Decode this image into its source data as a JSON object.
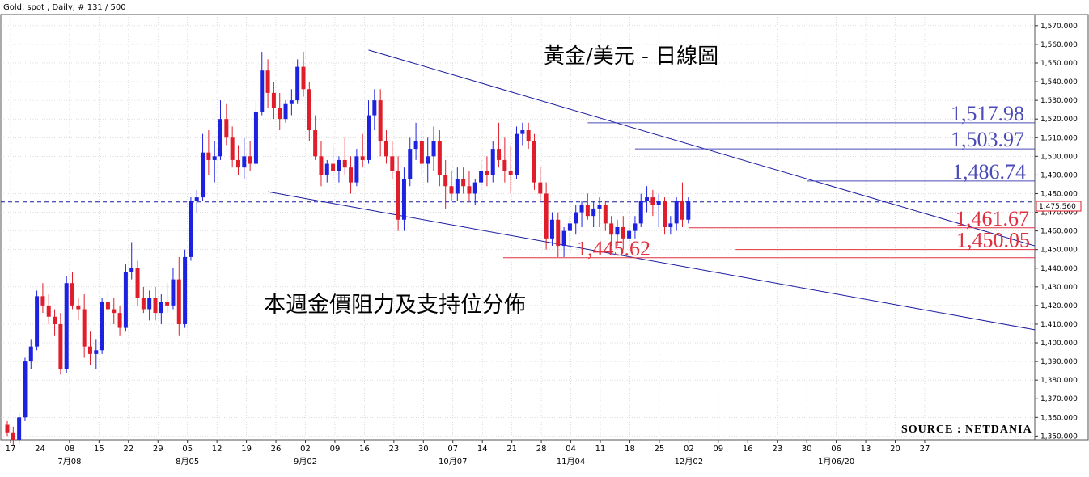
{
  "header": "Gold, spot , Daily, # 131 / 500",
  "source_label": "SOURCE : NETDANIA",
  "colors": {
    "up": "#1d22e0",
    "down": "#e01d2a",
    "trend": "#1a1aa0",
    "resistance": "#4a4ab8",
    "support": "#e03040"
  },
  "chart_data": {
    "type": "candlestick",
    "title": "黃金/美元 - 日線圖",
    "annotation": "本週金價阻力及支持位分佈",
    "current_price": "1,475.560",
    "ylim": [
      1348,
      1576
    ],
    "y_ticks": [
      "1,350.000",
      "1,360.000",
      "1,370.000",
      "1,380.000",
      "1,390.000",
      "1,400.000",
      "1,410.000",
      "1,420.000",
      "1,430.000",
      "1,440.000",
      "1,450.000",
      "1,460.000",
      "1,470.000",
      "1,480.000",
      "1,490.000",
      "1,500.000",
      "1,510.000",
      "1,520.000",
      "1,530.000",
      "1,540.000",
      "1,550.000",
      "1,560.000",
      "1,570.000"
    ],
    "x_ticks": [
      "17",
      "24",
      "08",
      "15",
      "22",
      "29",
      "05",
      "12",
      "19",
      "26",
      "02",
      "09",
      "16",
      "23",
      "30",
      "07",
      "14",
      "21",
      "28",
      "04",
      "11",
      "18",
      "25",
      "02",
      "09",
      "16",
      "23",
      "30",
      "06",
      "13",
      "20",
      "27"
    ],
    "month_labels": [
      "7月08",
      "8月05",
      "9月02",
      "10月07",
      "11月04",
      "12月02",
      "1月06/20"
    ],
    "levels": [
      {
        "label": "1,517.98",
        "value": 1517.98,
        "kind": "resistance"
      },
      {
        "label": "1,503.97",
        "value": 1503.97,
        "kind": "resistance"
      },
      {
        "label": "1,486.74",
        "value": 1486.74,
        "kind": "resistance"
      },
      {
        "label": "1,461.67",
        "value": 1461.67,
        "kind": "support"
      },
      {
        "label": "1,450.05",
        "value": 1450.05,
        "kind": "support"
      },
      {
        "label": "1,445.62",
        "value": 1445.62,
        "kind": "support"
      }
    ],
    "candles": [
      [
        1356,
        1358,
        1350,
        1352
      ],
      [
        1352,
        1355,
        1345,
        1348
      ],
      [
        1348,
        1362,
        1346,
        1360
      ],
      [
        1360,
        1392,
        1358,
        1390
      ],
      [
        1390,
        1402,
        1386,
        1398
      ],
      [
        1398,
        1428,
        1396,
        1425
      ],
      [
        1425,
        1432,
        1416,
        1420
      ],
      [
        1420,
        1426,
        1410,
        1414
      ],
      [
        1414,
        1418,
        1404,
        1410
      ],
      [
        1410,
        1416,
        1383,
        1386
      ],
      [
        1386,
        1436,
        1384,
        1432
      ],
      [
        1432,
        1438,
        1418,
        1420
      ],
      [
        1420,
        1424,
        1412,
        1418
      ],
      [
        1418,
        1426,
        1392,
        1398
      ],
      [
        1398,
        1406,
        1388,
        1394
      ],
      [
        1394,
        1402,
        1386,
        1396
      ],
      [
        1396,
        1424,
        1394,
        1422
      ],
      [
        1422,
        1428,
        1416,
        1418
      ],
      [
        1418,
        1424,
        1410,
        1416
      ],
      [
        1416,
        1420,
        1404,
        1408
      ],
      [
        1408,
        1442,
        1406,
        1438
      ],
      [
        1438,
        1454,
        1434,
        1440
      ],
      [
        1440,
        1444,
        1420,
        1424
      ],
      [
        1424,
        1430,
        1416,
        1418
      ],
      [
        1418,
        1428,
        1412,
        1424
      ],
      [
        1424,
        1430,
        1412,
        1416
      ],
      [
        1416,
        1426,
        1410,
        1422
      ],
      [
        1422,
        1432,
        1416,
        1420
      ],
      [
        1420,
        1440,
        1418,
        1434
      ],
      [
        1434,
        1446,
        1404,
        1410
      ],
      [
        1410,
        1450,
        1408,
        1446
      ],
      [
        1446,
        1478,
        1444,
        1476
      ],
      [
        1476,
        1482,
        1470,
        1478
      ],
      [
        1478,
        1512,
        1476,
        1502
      ],
      [
        1502,
        1514,
        1490,
        1498
      ],
      [
        1498,
        1508,
        1486,
        1500
      ],
      [
        1500,
        1530,
        1498,
        1520
      ],
      [
        1520,
        1528,
        1506,
        1510
      ],
      [
        1510,
        1516,
        1494,
        1498
      ],
      [
        1498,
        1506,
        1490,
        1494
      ],
      [
        1494,
        1510,
        1488,
        1500
      ],
      [
        1500,
        1508,
        1492,
        1496
      ],
      [
        1496,
        1530,
        1494,
        1524
      ],
      [
        1524,
        1556,
        1522,
        1546
      ],
      [
        1546,
        1552,
        1526,
        1534
      ],
      [
        1534,
        1540,
        1520,
        1526
      ],
      [
        1526,
        1534,
        1514,
        1520
      ],
      [
        1520,
        1530,
        1518,
        1528
      ],
      [
        1528,
        1536,
        1522,
        1530
      ],
      [
        1530,
        1552,
        1528,
        1548
      ],
      [
        1548,
        1556,
        1532,
        1536
      ],
      [
        1536,
        1540,
        1508,
        1514
      ],
      [
        1514,
        1522,
        1498,
        1500
      ],
      [
        1500,
        1508,
        1484,
        1490
      ],
      [
        1490,
        1498,
        1486,
        1496
      ],
      [
        1496,
        1506,
        1488,
        1492
      ],
      [
        1492,
        1500,
        1486,
        1498
      ],
      [
        1498,
        1510,
        1490,
        1494
      ],
      [
        1494,
        1500,
        1480,
        1486
      ],
      [
        1486,
        1504,
        1484,
        1500
      ],
      [
        1500,
        1512,
        1494,
        1498
      ],
      [
        1498,
        1530,
        1496,
        1522
      ],
      [
        1522,
        1536,
        1514,
        1530
      ],
      [
        1530,
        1536,
        1500,
        1508
      ],
      [
        1508,
        1514,
        1496,
        1500
      ],
      [
        1500,
        1508,
        1488,
        1492
      ],
      [
        1492,
        1500,
        1460,
        1466
      ],
      [
        1466,
        1494,
        1460,
        1488
      ],
      [
        1488,
        1510,
        1484,
        1504
      ],
      [
        1504,
        1518,
        1498,
        1508
      ],
      [
        1508,
        1514,
        1490,
        1496
      ],
      [
        1496,
        1510,
        1486,
        1500
      ],
      [
        1500,
        1516,
        1492,
        1508
      ],
      [
        1508,
        1514,
        1484,
        1490
      ],
      [
        1490,
        1498,
        1472,
        1484
      ],
      [
        1484,
        1492,
        1476,
        1480
      ],
      [
        1480,
        1494,
        1476,
        1488
      ],
      [
        1488,
        1494,
        1480,
        1484
      ],
      [
        1484,
        1492,
        1476,
        1480
      ],
      [
        1480,
        1488,
        1474,
        1486
      ],
      [
        1486,
        1498,
        1482,
        1492
      ],
      [
        1492,
        1500,
        1484,
        1490
      ],
      [
        1490,
        1508,
        1486,
        1504
      ],
      [
        1504,
        1518,
        1494,
        1498
      ],
      [
        1498,
        1510,
        1486,
        1492
      ],
      [
        1492,
        1506,
        1480,
        1490
      ],
      [
        1490,
        1516,
        1488,
        1512
      ],
      [
        1512,
        1518,
        1506,
        1514
      ],
      [
        1514,
        1518,
        1504,
        1508
      ],
      [
        1508,
        1512,
        1482,
        1486
      ],
      [
        1486,
        1494,
        1476,
        1480
      ],
      [
        1480,
        1486,
        1450,
        1456
      ],
      [
        1456,
        1470,
        1452,
        1466
      ],
      [
        1466,
        1470,
        1446,
        1452
      ],
      [
        1452,
        1462,
        1446,
        1460
      ],
      [
        1460,
        1468,
        1452,
        1464
      ],
      [
        1464,
        1474,
        1458,
        1470
      ],
      [
        1470,
        1476,
        1462,
        1474
      ],
      [
        1474,
        1480,
        1466,
        1468
      ],
      [
        1468,
        1476,
        1462,
        1472
      ],
      [
        1472,
        1478,
        1462,
        1474
      ],
      [
        1474,
        1476,
        1460,
        1464
      ],
      [
        1464,
        1468,
        1452,
        1458
      ],
      [
        1458,
        1466,
        1452,
        1462
      ],
      [
        1462,
        1468,
        1450,
        1456
      ],
      [
        1456,
        1464,
        1452,
        1460
      ],
      [
        1460,
        1468,
        1456,
        1464
      ],
      [
        1464,
        1480,
        1462,
        1476
      ],
      [
        1476,
        1484,
        1470,
        1478
      ],
      [
        1478,
        1482,
        1468,
        1474
      ],
      [
        1474,
        1480,
        1462,
        1476
      ],
      [
        1476,
        1478,
        1458,
        1462
      ],
      [
        1462,
        1468,
        1458,
        1464
      ],
      [
        1464,
        1478,
        1460,
        1476
      ],
      [
        1476,
        1486,
        1462,
        1466
      ],
      [
        1466,
        1478,
        1464,
        1476
      ]
    ]
  }
}
